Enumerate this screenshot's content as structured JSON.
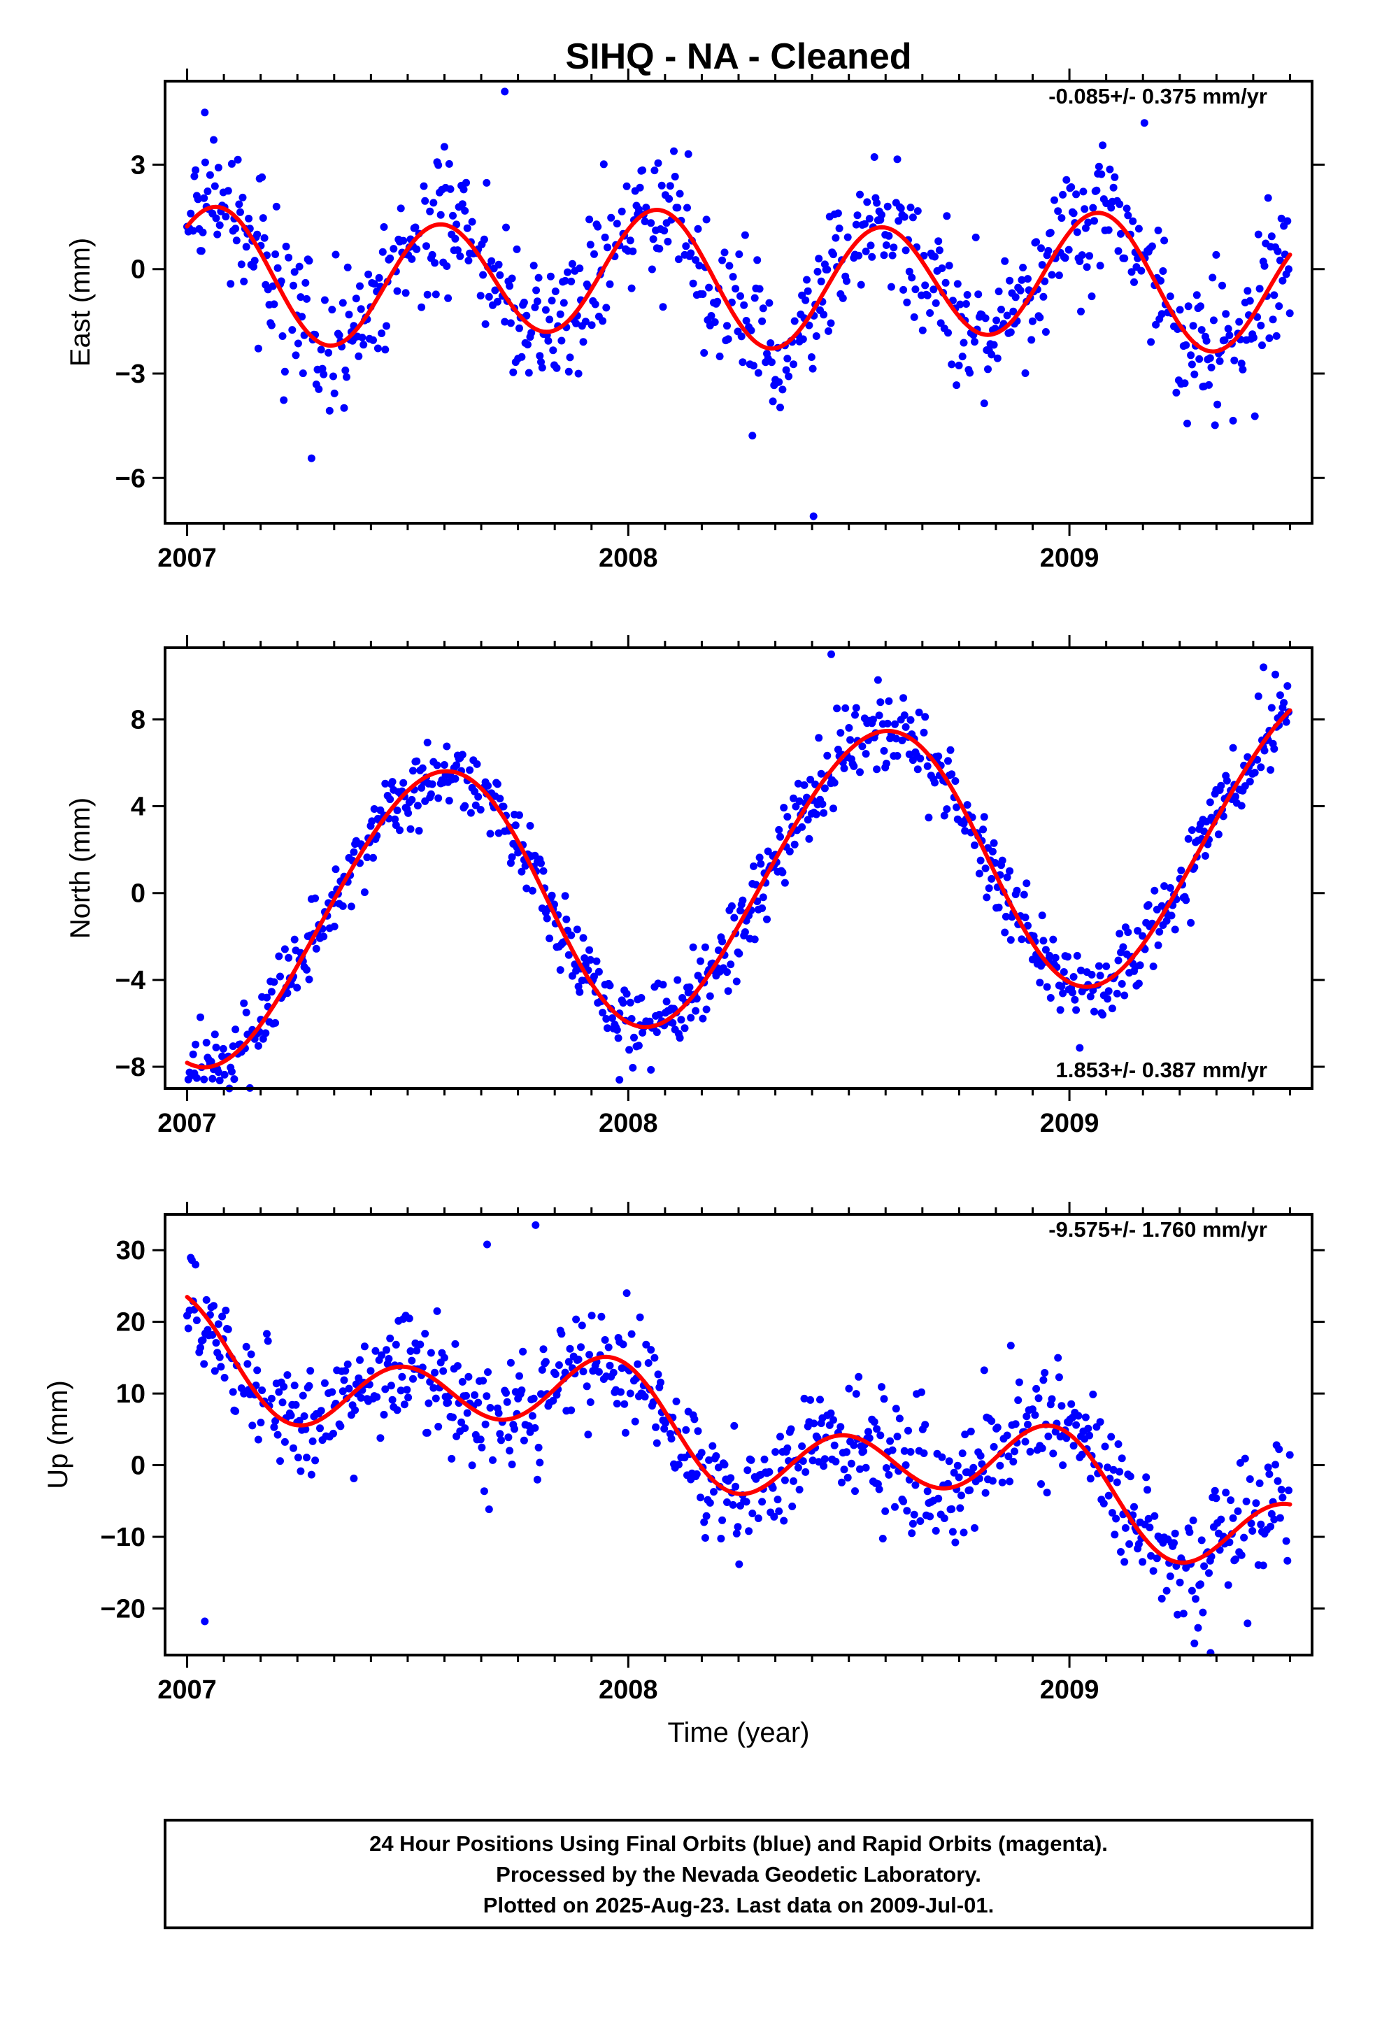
{
  "title": "SIHQ  - NA - Cleaned",
  "xlabel": "Time (year)",
  "colors": {
    "final_orbits": "#0000ff",
    "rapid_orbits": "#ff00ff",
    "fit": "#ff0000"
  },
  "chart_data": [
    {
      "type": "scatter",
      "ylabel": "East (mm)",
      "xlim": [
        2006.95,
        2009.55
      ],
      "ylim": [
        -7.3,
        5.4
      ],
      "xticks": [
        "2007",
        "2008",
        "2009"
      ],
      "yticks": [
        "3",
        "0",
        "−3",
        "−6"
      ],
      "ytick_values": [
        3,
        0,
        -3,
        -6
      ],
      "rate_text": "-0.085+/- 0.375 mm/yr",
      "rate_position": "top-right",
      "trend": -0.085,
      "seasonal": {
        "offset": -0.3,
        "annual": [
          0.3,
          -0.1
        ],
        "semiannual": [
          1.12,
          1.35
        ]
      },
      "noise_sd": 1.0,
      "outliers": [
        [
          2007.72,
          5.1
        ],
        [
          2008.42,
          -7.1
        ],
        [
          2009.17,
          4.2
        ],
        [
          2007.04,
          4.5
        ]
      ]
    },
    {
      "type": "scatter",
      "ylabel": "North (mm)",
      "xlim": [
        2006.95,
        2009.55
      ],
      "ylim": [
        -9,
        11.3
      ],
      "xticks": [
        "2007",
        "2008",
        "2009"
      ],
      "yticks": [
        "8",
        "4",
        "0",
        "−4",
        "−8"
      ],
      "ytick_values": [
        8,
        4,
        0,
        -4,
        -8
      ],
      "rate_text": "1.853+/- 0.387 mm/yr",
      "rate_position": "bottom-right",
      "trend": 1.853,
      "seasonal": {
        "offset": 0.6,
        "annual": [
          -5.8,
          -2.4
        ],
        "semiannual": [
          -0.3,
          0.2
        ]
      },
      "noise_sd": 0.9,
      "outliers": [
        [
          2008.46,
          11.0
        ],
        [
          2007.98,
          -8.6
        ],
        [
          2009.44,
          10.4
        ]
      ]
    },
    {
      "type": "scatter",
      "ylabel": "Up (mm)",
      "xlim": [
        2006.95,
        2009.55
      ],
      "ylim": [
        -26.5,
        35
      ],
      "xticks": [
        "2007",
        "2008",
        "2009"
      ],
      "yticks": [
        "30",
        "20",
        "10",
        "0",
        "−10",
        "−20"
      ],
      "ytick_values": [
        30,
        20,
        10,
        0,
        -10,
        -20
      ],
      "rate_text": "-9.575+/- 1.760 mm/yr",
      "rate_position": "top-right",
      "trend": -9.575,
      "seasonal": {
        "offset": 4.0,
        "annual": [
          2.5,
          -3.0
        ],
        "semiannual": [
          5.0,
          -1.5
        ]
      },
      "noise_sd": 4.2,
      "outliers": [
        [
          2007.79,
          33.5
        ],
        [
          2007.68,
          30.8
        ],
        [
          2007.04,
          -21.8
        ],
        [
          2009.32,
          -26.2
        ]
      ]
    }
  ],
  "caption": {
    "line1": "24 Hour Positions Using Final Orbits (blue) and Rapid Orbits (magenta).",
    "line2": "Processed by the Nevada Geodetic Laboratory.",
    "line3": "Plotted on 2025-Aug-23. Last data on 2009-Jul-01."
  }
}
